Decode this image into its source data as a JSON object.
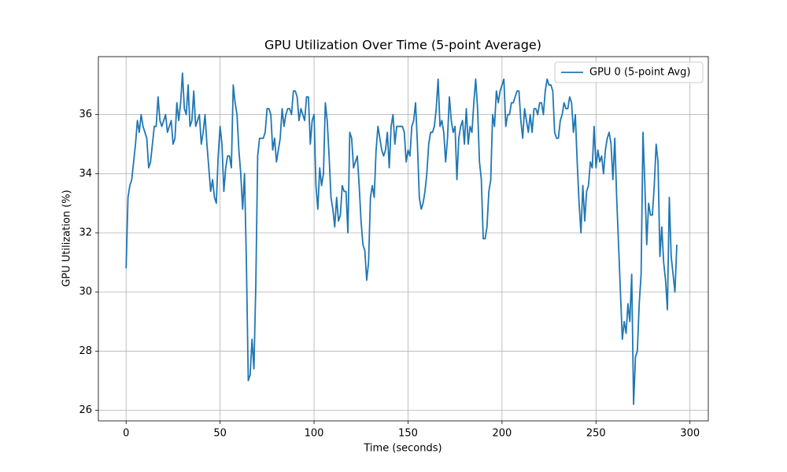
{
  "chart_data": {
    "type": "line",
    "title": "GPU Utilization Over Time (5-point Average)",
    "x_label": "Time (seconds)",
    "y_label": "GPU Utilization (%)",
    "xlim": [
      -14.75,
      309.75
    ],
    "ylim": [
      25.64,
      37.96
    ],
    "xticks": [
      0,
      50,
      100,
      150,
      200,
      250,
      300
    ],
    "yticks": [
      26,
      28,
      30,
      32,
      34,
      36
    ],
    "grid": true,
    "legend_position": "upper right",
    "series": [
      {
        "name": "GPU 0 (5-point Avg)",
        "color": "#1f77b4",
        "x": [
          0,
          1,
          2,
          3,
          4,
          5,
          6,
          7,
          8,
          9,
          10,
          11,
          12,
          13,
          14,
          15,
          16,
          17,
          18,
          19,
          20,
          21,
          22,
          23,
          24,
          25,
          26,
          27,
          28,
          29,
          30,
          31,
          32,
          33,
          34,
          35,
          36,
          37,
          38,
          39,
          40,
          41,
          42,
          43,
          44,
          45,
          46,
          47,
          48,
          49,
          50,
          51,
          52,
          53,
          54,
          55,
          56,
          57,
          58,
          59,
          60,
          61,
          62,
          63,
          64,
          65,
          66,
          67,
          68,
          69,
          70,
          71,
          72,
          73,
          74,
          75,
          76,
          77,
          78,
          79,
          80,
          81,
          82,
          83,
          84,
          85,
          86,
          87,
          88,
          89,
          90,
          91,
          92,
          93,
          94,
          95,
          96,
          97,
          98,
          99,
          100,
          101,
          102,
          103,
          104,
          105,
          106,
          107,
          108,
          109,
          110,
          111,
          112,
          113,
          114,
          115,
          116,
          117,
          118,
          119,
          120,
          121,
          122,
          123,
          124,
          125,
          126,
          127,
          128,
          129,
          130,
          131,
          132,
          133,
          134,
          135,
          136,
          137,
          138,
          139,
          140,
          141,
          142,
          143,
          144,
          145,
          146,
          147,
          148,
          149,
          150,
          151,
          152,
          153,
          154,
          155,
          156,
          157,
          158,
          159,
          160,
          161,
          162,
          163,
          164,
          165,
          166,
          167,
          168,
          169,
          170,
          171,
          172,
          173,
          174,
          175,
          176,
          177,
          178,
          179,
          180,
          181,
          182,
          183,
          184,
          185,
          186,
          187,
          188,
          189,
          190,
          191,
          192,
          193,
          194,
          195,
          196,
          197,
          198,
          199,
          200,
          201,
          202,
          203,
          204,
          205,
          206,
          207,
          208,
          209,
          210,
          211,
          212,
          213,
          214,
          215,
          216,
          217,
          218,
          219,
          220,
          221,
          222,
          223,
          224,
          225,
          226,
          227,
          228,
          229,
          230,
          231,
          232,
          233,
          234,
          235,
          236,
          237,
          238,
          239,
          240,
          241,
          242,
          243,
          244,
          245,
          246,
          247,
          248,
          249,
          250,
          251,
          252,
          253,
          254,
          255,
          256,
          257,
          258,
          259,
          260,
          261,
          262,
          263,
          264,
          265,
          266,
          267,
          268,
          269,
          270,
          271,
          272,
          273,
          274,
          275,
          276,
          277,
          278,
          279,
          280,
          281,
          282,
          283,
          284,
          285,
          286,
          287,
          288,
          289,
          290,
          291,
          292,
          293
        ],
        "values": [
          30.8,
          33.2,
          33.6,
          33.8,
          34.4,
          35,
          35.8,
          35.4,
          36,
          35.6,
          35.4,
          35.2,
          34.2,
          34.4,
          35,
          35.6,
          35.6,
          36.6,
          35.8,
          35.6,
          35.8,
          36,
          35.4,
          35.6,
          35.8,
          35,
          35.2,
          36.4,
          35.8,
          36.4,
          37.4,
          36.2,
          36,
          37,
          35.6,
          35.8,
          36.8,
          35.6,
          35.8,
          36,
          35,
          35.4,
          36,
          35,
          34.2,
          33.4,
          33.8,
          33.2,
          33,
          34.6,
          35.6,
          35,
          33.4,
          34.2,
          34.6,
          34.6,
          34.2,
          37,
          36.4,
          36,
          34.8,
          34,
          32.8,
          34,
          31,
          27,
          27.2,
          28.4,
          27.4,
          30.2,
          34.6,
          35.2,
          35.2,
          35.2,
          35.4,
          36.2,
          36.2,
          36,
          34.8,
          35.2,
          34.4,
          34.8,
          35.2,
          36.2,
          35.6,
          36,
          36.2,
          36.2,
          36,
          36.8,
          36.8,
          36.6,
          35.8,
          36.2,
          36,
          35.8,
          36.6,
          36.6,
          35,
          35.8,
          36,
          33.6,
          32.8,
          34.2,
          33.6,
          34,
          36.4,
          35.8,
          34.6,
          33.2,
          32.8,
          32.2,
          33.2,
          32.4,
          32.6,
          33.6,
          33.4,
          33.4,
          32,
          35.4,
          35.2,
          34.2,
          34.4,
          34.6,
          33.6,
          32.4,
          31.6,
          31.4,
          30.4,
          31,
          33.2,
          33.6,
          33.2,
          34.8,
          35.6,
          35.2,
          34.8,
          34.6,
          34.8,
          35.4,
          34.2,
          35.6,
          36,
          35,
          35.6,
          35.6,
          35.6,
          35.6,
          35.4,
          34.4,
          34.8,
          34.6,
          35.6,
          35.8,
          36.4,
          35,
          33.2,
          32.8,
          33,
          33.4,
          34,
          35,
          35.4,
          35.4,
          35.6,
          36.2,
          37.2,
          35.6,
          35.8,
          35.4,
          34.4,
          35.2,
          36.6,
          35.8,
          35.4,
          35.6,
          33.8,
          35.2,
          35.6,
          35.8,
          35,
          36.2,
          35,
          35.6,
          35.4,
          36.4,
          37.2,
          36.2,
          34.4,
          33.8,
          31.8,
          31.8,
          32.2,
          33.4,
          33.8,
          36,
          35.6,
          36.8,
          36.4,
          36.8,
          37,
          37.2,
          35.6,
          36,
          36,
          36.4,
          36.4,
          36.6,
          36.8,
          36.8,
          35.8,
          35.2,
          36.2,
          35.8,
          35.4,
          36,
          35.4,
          36.2,
          36.2,
          36,
          36.4,
          36.4,
          36,
          36.8,
          37.2,
          37,
          37,
          36.8,
          35.4,
          35.2,
          35.2,
          35.8,
          36,
          36.4,
          36.2,
          36.2,
          36.6,
          36.4,
          35.4,
          36,
          34.4,
          33,
          32,
          33.6,
          32.4,
          33.4,
          33.6,
          34.4,
          34.2,
          35.6,
          34.2,
          34.8,
          34.4,
          34.6,
          34,
          34.8,
          35.2,
          35.4,
          35,
          33.8,
          35.2,
          33.2,
          31.6,
          30,
          28.4,
          29,
          28.6,
          29.6,
          29,
          30.6,
          26.2,
          27.8,
          28,
          29.6,
          30.6,
          35.4,
          33.6,
          31.6,
          33,
          32.6,
          32.6,
          33.6,
          35,
          34.4,
          31.2,
          32.2,
          31,
          30.4,
          29.4,
          33.2,
          31.2,
          30.6,
          30,
          31.6
        ]
      }
    ]
  }
}
